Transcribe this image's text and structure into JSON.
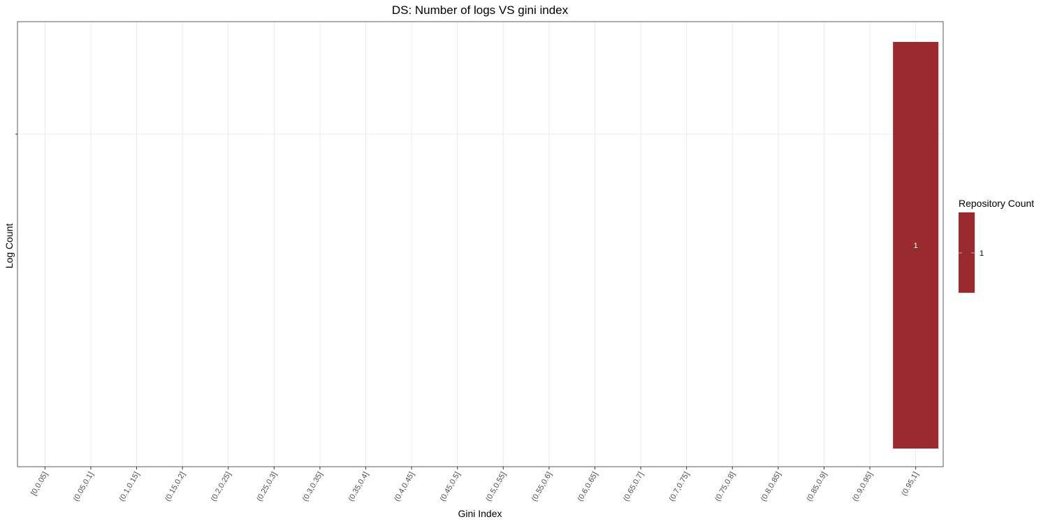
{
  "chart_data": {
    "type": "bar",
    "title": "DS: Number of logs VS gini index",
    "xlabel": "Gini Index",
    "ylabel": "Log Count",
    "categories": [
      "[0,0.05]",
      "(0.05,0.1]",
      "(0.1,0.15]",
      "(0.15,0.2]",
      "(0.2,0.25]",
      "(0.25,0.3]",
      "(0.3,0.35]",
      "(0.35,0.4]",
      "(0.4,0.45]",
      "(0.45,0.5]",
      "(0.5,0.55]",
      "(0.55,0.6]",
      "(0.6,0.65]",
      "(0.65,0.7]",
      "(0.7,0.75]",
      "(0.75,0.8]",
      "(0.8,0.85]",
      "(0.85,0.9]",
      "(0.9,0.95]",
      "(0.95,1]"
    ],
    "bars": [
      {
        "category": "(0.95,1]",
        "repository_count": 1,
        "label": "1"
      }
    ],
    "legend": {
      "title": "Repository Count",
      "entries": [
        {
          "label": "1",
          "color": "#992a2e"
        }
      ],
      "position": "right"
    },
    "bar_color": "#992a2e",
    "grid": true,
    "y_tick_labels": [
      ""
    ]
  }
}
